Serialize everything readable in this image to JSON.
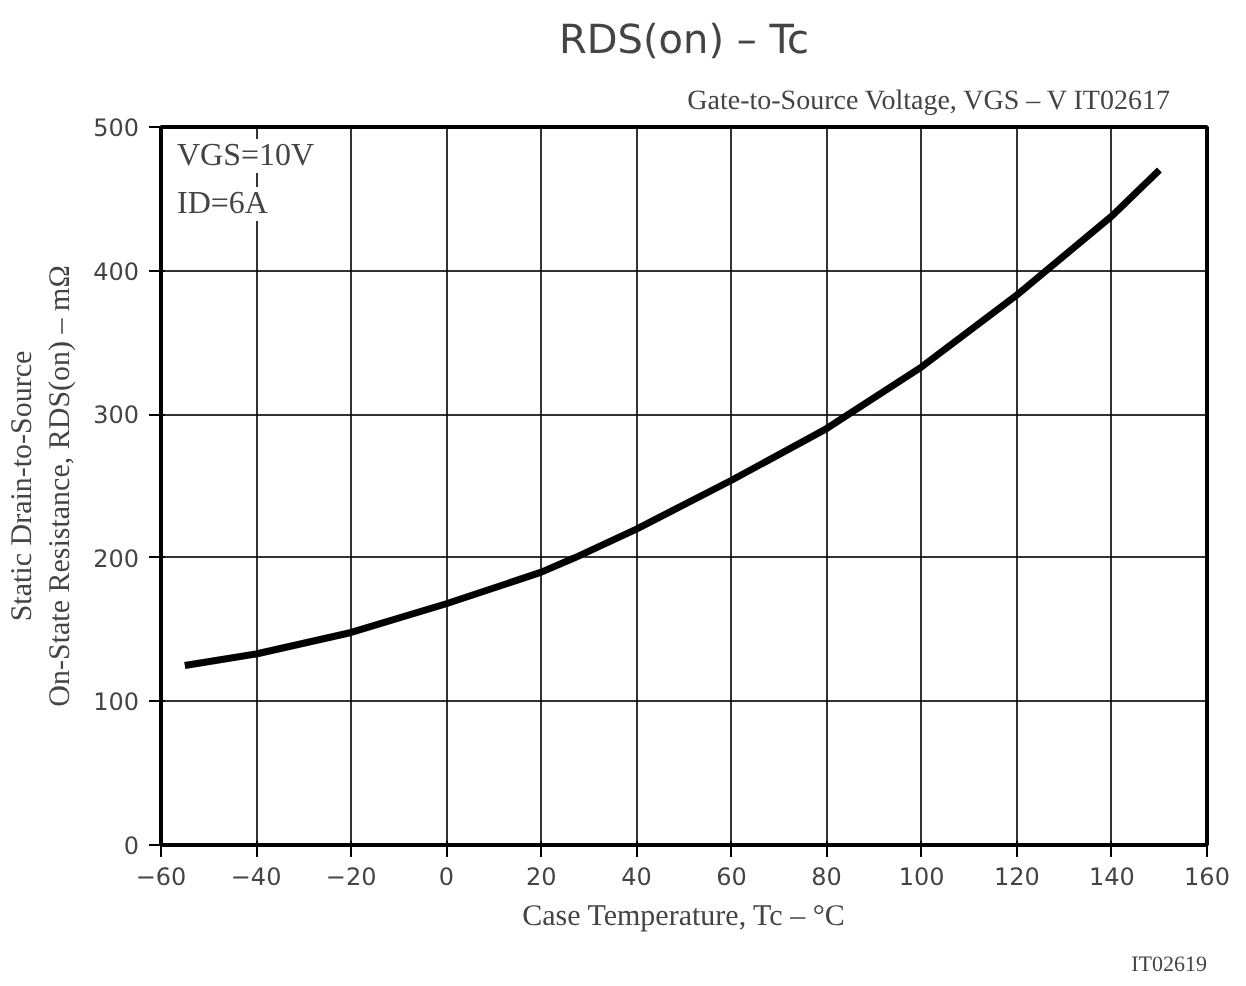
{
  "chart_data": {
    "type": "line",
    "title": "RDS(on) – Tc",
    "xlabel": "Case Temperature, Tc – °C",
    "ylabel": "Static Drain-to-Source\nOn-State Resistance, RDS(on) – mΩ",
    "annotations": [
      "VGS=10V",
      "ID=6A",
      "Gate-to-Source Voltage, VGS – V      IT02617",
      "IT02619"
    ],
    "x": [
      -55,
      -40,
      -20,
      0,
      20,
      27,
      40,
      60,
      80,
      100,
      120,
      140,
      150
    ],
    "series": [
      {
        "color": "#000000",
        "values": [
          125,
          133,
          148,
          168,
          190,
          200,
          220,
          254,
          290,
          333,
          383,
          438,
          470
        ]
      }
    ],
    "xlim": [
      -60,
      160
    ],
    "xticks": [
      -60,
      -40,
      -20,
      0,
      20,
      40,
      60,
      80,
      100,
      120,
      140,
      160
    ],
    "ylim": [
      0,
      500
    ],
    "yticks": [
      0,
      100,
      200,
      300,
      400,
      500
    ],
    "grid": true,
    "marker": "none",
    "line_style": "solid"
  }
}
